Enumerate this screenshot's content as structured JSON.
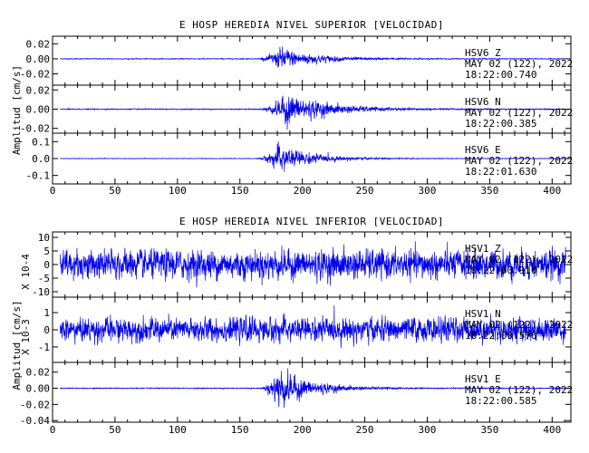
{
  "chart_data": [
    {
      "type": "line",
      "title": "E HOSP HEREDIA NIVEL SUPERIOR [VELOCIDAD]",
      "ylabel": "Amplitud [cm/s]",
      "xlim": [
        0,
        415
      ],
      "x_ticks": [
        "0",
        "50",
        "100",
        "150",
        "200",
        "250",
        "300",
        "350",
        "400"
      ],
      "panels": [
        {
          "station": "HSV6",
          "component": "Z",
          "date": "MAY 02 (122), 2022",
          "time": "18:22:00.740",
          "ylim": [
            -0.035,
            0.03
          ],
          "y_ticks": [
            0.02,
            0.0,
            -0.02
          ],
          "y_tick_labels": [
            "0.02",
            "0.00",
            "-0.02"
          ],
          "noise": 0.0007,
          "event_peak": 0.018,
          "onset": 162,
          "peak": 183,
          "decay": 28
        },
        {
          "station": "HSV6",
          "component": "N",
          "date": "MAY 02 (122), 2022",
          "time": "18:22:00.385",
          "ylim": [
            -0.025,
            0.025
          ],
          "y_ticks": [
            0.02,
            0.0,
            -0.02
          ],
          "y_tick_labels": [
            "0.02",
            "0.00",
            "-0.02"
          ],
          "noise": 0.0006,
          "event_peak": 0.02,
          "onset": 163,
          "peak": 188,
          "decay": 32
        },
        {
          "station": "HSV6",
          "component": "E",
          "date": "MAY 02 (122), 2022",
          "time": "18:22:01.630",
          "ylim": [
            -0.15,
            0.15
          ],
          "y_ticks": [
            0.1,
            0.0,
            -0.1
          ],
          "y_tick_labels": [
            "0.1",
            "0.0",
            "-0.1"
          ],
          "noise": 0.002,
          "event_peak": 0.1,
          "onset": 162,
          "peak": 182,
          "decay": 25
        }
      ]
    },
    {
      "type": "line",
      "title": "E HOSP HEREDIA NIVEL INFERIOR [VELOCIDAD]",
      "ylabel": "Amplitud [cm/s]",
      "xlim": [
        0,
        415
      ],
      "x_ticks": [
        "0",
        "50",
        "100",
        "150",
        "200",
        "250",
        "300",
        "350",
        "400"
      ],
      "panels": [
        {
          "station": "HSV1",
          "component": "Z",
          "date": "MAY 02 (122), 2022",
          "time": "18:22:00.910",
          "scale_label": "X 10-4",
          "ylim": [
            -12,
            12
          ],
          "y_ticks": [
            10,
            5,
            0,
            -5,
            -10
          ],
          "y_tick_labels": [
            "10",
            "5",
            "0",
            "-5",
            "-10"
          ],
          "noise": 6.5,
          "event_peak": 0,
          "onset": 0,
          "peak": 0,
          "decay": 1
        },
        {
          "station": "HSV1",
          "component": "N",
          "date": "MAY 02 (122), 2022",
          "time": "18:22:00.570",
          "scale_label": "X 10-3",
          "ylim": [
            -1.9,
            1.9
          ],
          "y_ticks": [
            1,
            0,
            -1
          ],
          "y_tick_labels": [
            "1",
            "0",
            "-1"
          ],
          "noise": 0.85,
          "event_peak": 0,
          "onset": 0,
          "peak": 0,
          "decay": 1
        },
        {
          "station": "HSV1",
          "component": "E",
          "date": "MAY 02 (122), 2022",
          "time": "18:22:00.585",
          "ylim": [
            -0.042,
            0.032
          ],
          "y_ticks": [
            0.02,
            0.0,
            -0.02,
            -0.04
          ],
          "y_tick_labels": [
            "0.02",
            "0.00",
            "-0.02",
            "-0.04"
          ],
          "noise": 0.0007,
          "event_peak": 0.03,
          "onset": 165,
          "peak": 181,
          "decay": 25
        }
      ]
    }
  ]
}
